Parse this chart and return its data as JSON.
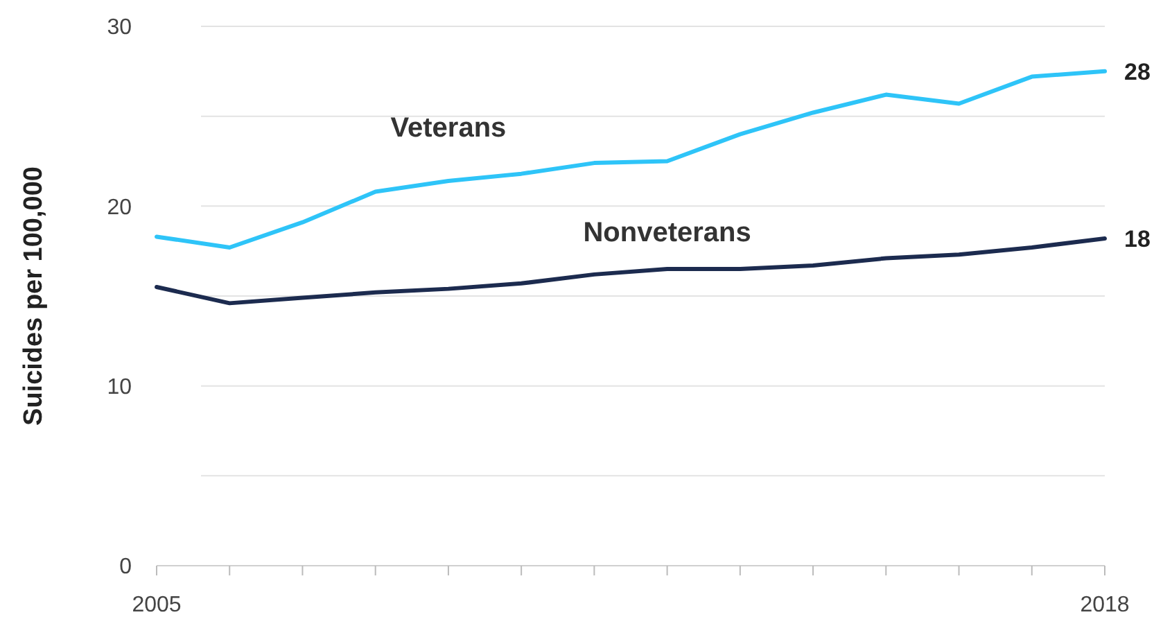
{
  "chart_data": {
    "type": "line",
    "ylabel": "Suicides per 100,000",
    "x": [
      2005,
      2006,
      2007,
      2008,
      2009,
      2010,
      2011,
      2012,
      2013,
      2014,
      2015,
      2016,
      2017,
      2018
    ],
    "series": [
      {
        "name": "Veterans",
        "color": "#2ec4f8",
        "values": [
          18.3,
          17.7,
          19.1,
          20.8,
          21.4,
          21.8,
          22.4,
          22.5,
          24.0,
          25.2,
          26.2,
          25.7,
          27.2,
          27.5
        ],
        "value_labels": [
          null,
          null,
          null,
          null,
          null,
          null,
          null,
          null,
          null,
          null,
          null,
          null,
          null,
          "28"
        ]
      },
      {
        "name": "Nonveterans",
        "color": "#1c2b4f",
        "values": [
          15.5,
          14.6,
          14.9,
          15.2,
          15.4,
          15.7,
          16.2,
          16.5,
          16.5,
          16.7,
          17.1,
          17.3,
          17.7,
          18.2
        ],
        "value_labels": [
          null,
          null,
          null,
          null,
          null,
          null,
          null,
          null,
          null,
          null,
          null,
          null,
          null,
          "18"
        ]
      }
    ],
    "xlim": [
      2005,
      2018
    ],
    "xticks": [
      {
        "value": 2005,
        "label": "2005"
      },
      {
        "value": 2006,
        "label": null
      },
      {
        "value": 2007,
        "label": null
      },
      {
        "value": 2008,
        "label": null
      },
      {
        "value": 2009,
        "label": null
      },
      {
        "value": 2010,
        "label": null
      },
      {
        "value": 2011,
        "label": null
      },
      {
        "value": 2012,
        "label": null
      },
      {
        "value": 2013,
        "label": null
      },
      {
        "value": 2014,
        "label": null
      },
      {
        "value": 2015,
        "label": null
      },
      {
        "value": 2016,
        "label": null
      },
      {
        "value": 2017,
        "label": null
      },
      {
        "value": 2018,
        "label": "2018"
      }
    ],
    "ylim": [
      0,
      30
    ],
    "yticks": [
      0,
      {
        "value": 5,
        "label": null
      },
      10,
      {
        "value": 15,
        "label": null
      },
      20,
      {
        "value": 25,
        "label": null
      },
      30
    ],
    "grid": "y",
    "marker": "none",
    "line_style": "solid"
  }
}
